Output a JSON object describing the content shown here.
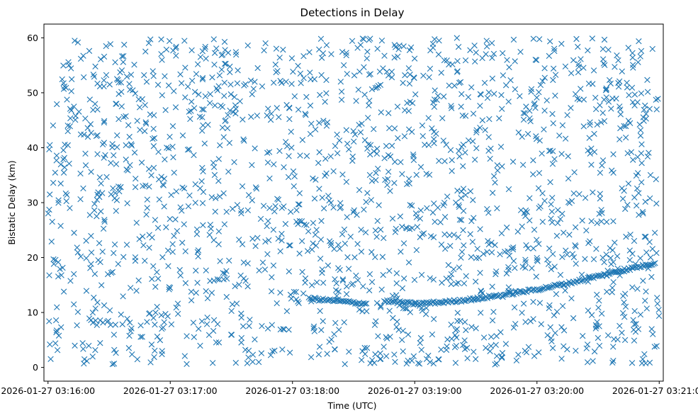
{
  "chart_data": {
    "type": "scatter",
    "title": "Detections in Delay",
    "xlabel": "Time (UTC)",
    "ylabel": "Bistatic Delay (km)",
    "x_start": "2026-01-27 03:15:58",
    "x_end": "2026-01-27 03:21:02",
    "ylim": [
      -2.5,
      62.5
    ],
    "marker": "x",
    "color": "#1f77b4",
    "grid": false,
    "x_ticks": [
      "2026-01-27 03:16:00",
      "2026-01-27 03:17:00",
      "2026-01-27 03:18:00",
      "2026-01-27 03:19:00",
      "2026-01-27 03:20:00",
      "2026-01-27 03:21:00"
    ],
    "y_ticks": [
      0,
      10,
      20,
      30,
      40,
      50,
      60
    ],
    "clutter": {
      "description_count": 1800,
      "time_range": [
        "2026-01-27 03:16:00",
        "2026-01-27 03:21:00"
      ],
      "delay_range": [
        0.5,
        60
      ]
    },
    "series": [
      {
        "points": [
          {
            "t": "2026-01-27 03:18:08",
            "y": 12.5
          },
          {
            "t": "2026-01-27 03:18:15",
            "y": 12.3
          },
          {
            "t": "2026-01-27 03:18:22",
            "y": 12.1
          },
          {
            "t": "2026-01-27 03:18:30",
            "y": 11.8
          },
          {
            "t": "2026-01-27 03:18:37",
            "y": 11.6
          },
          {
            "t": "2026-01-27 03:18:45",
            "y": 12.1
          },
          {
            "t": "2026-01-27 03:19:00",
            "y": 11.6
          },
          {
            "t": "2026-01-27 03:19:15",
            "y": 11.9
          },
          {
            "t": "2026-01-27 03:19:30",
            "y": 12.5
          },
          {
            "t": "2026-01-27 03:19:45",
            "y": 13.3
          },
          {
            "t": "2026-01-27 03:20:00",
            "y": 14.2
          },
          {
            "t": "2026-01-27 03:20:15",
            "y": 15.3
          },
          {
            "t": "2026-01-27 03:20:30",
            "y": 16.6
          },
          {
            "t": "2026-01-27 03:20:45",
            "y": 17.9
          },
          {
            "t": "2026-01-27 03:20:58",
            "y": 19.0
          }
        ]
      }
    ]
  }
}
